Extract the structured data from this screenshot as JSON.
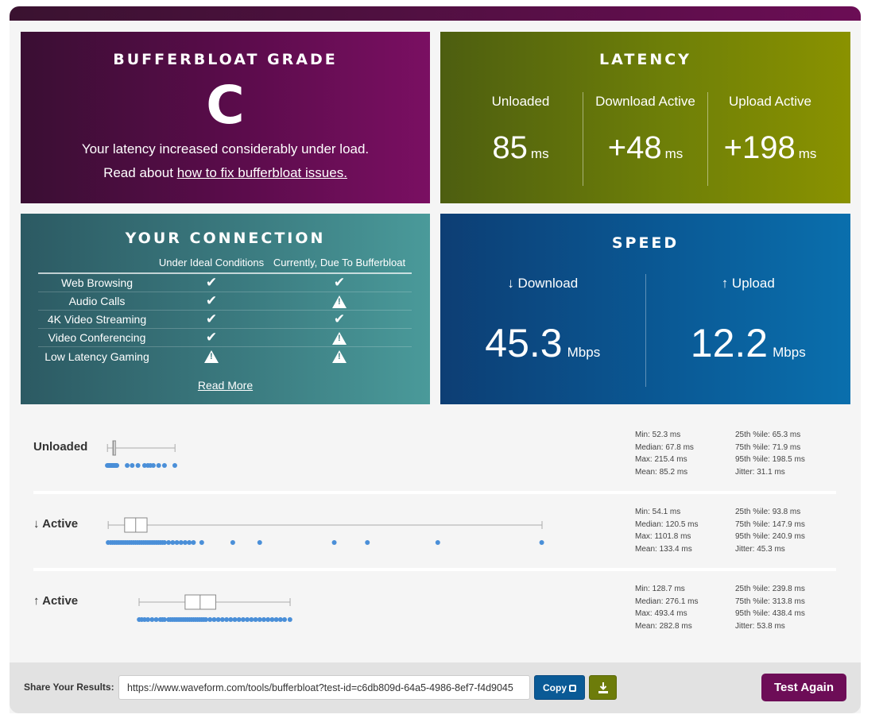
{
  "grade": {
    "title": "BUFFERBLOAT GRADE",
    "letter": "C",
    "description": "Your latency increased considerably under load.",
    "read_prefix": "Read about ",
    "read_link": "how to fix bufferbloat issues."
  },
  "latency": {
    "title": "LATENCY",
    "columns": [
      {
        "label": "Unloaded",
        "value": "85",
        "unit": "ms"
      },
      {
        "label": "Download Active",
        "value": "+48",
        "unit": "ms"
      },
      {
        "label": "Upload Active",
        "value": "+198",
        "unit": "ms"
      }
    ]
  },
  "connection": {
    "title": "YOUR CONNECTION",
    "col_ideal": "Under Ideal Conditions",
    "col_now": "Currently, Due To Bufferbloat",
    "rows": [
      {
        "name": "Web Browsing",
        "ideal": "check",
        "now": "check"
      },
      {
        "name": "Audio Calls",
        "ideal": "check",
        "now": "warn"
      },
      {
        "name": "4K Video Streaming",
        "ideal": "check",
        "now": "check"
      },
      {
        "name": "Video Conferencing",
        "ideal": "check",
        "now": "warn"
      },
      {
        "name": "Low Latency Gaming",
        "ideal": "warn",
        "now": "warn"
      }
    ],
    "read_more": "Read More"
  },
  "speed": {
    "title": "SPEED",
    "download": {
      "label": "↓ Download",
      "value": "45.3",
      "unit": "Mbps"
    },
    "upload": {
      "label": "↑ Upload",
      "value": "12.2",
      "unit": "Mbps"
    }
  },
  "distributions": [
    {
      "label": "Unloaded",
      "min": 52.3,
      "q1": 65.3,
      "median": 67.8,
      "q3": 71.9,
      "max": 215.4,
      "samples": [
        52,
        54,
        55,
        56,
        57,
        58,
        59,
        60,
        61,
        62,
        63,
        63,
        64,
        65,
        65,
        66,
        66,
        67,
        67,
        68,
        68,
        69,
        69,
        70,
        70,
        71,
        72,
        73,
        74,
        75,
        100,
        112,
        126,
        142,
        150,
        156,
        163,
        176,
        190,
        215
      ],
      "stats_left": [
        "Min: 52.3 ms",
        "Median: 67.8 ms",
        "Max: 215.4 ms",
        "Mean: 85.2 ms"
      ],
      "stats_right": [
        "25th %ile: 65.3 ms",
        "75th %ile: 71.9 ms",
        "95th %ile: 198.5 ms",
        "Jitter: 31.1 ms"
      ]
    },
    {
      "label": "↓ Active",
      "min": 54.1,
      "q1": 93.8,
      "median": 120.5,
      "q3": 147.9,
      "max": 1101.8,
      "samples": [
        54,
        60,
        65,
        70,
        75,
        80,
        85,
        90,
        95,
        100,
        105,
        110,
        115,
        120,
        125,
        130,
        135,
        140,
        145,
        150,
        155,
        160,
        165,
        170,
        175,
        180,
        185,
        190,
        200,
        210,
        220,
        230,
        240,
        250,
        260,
        280,
        355,
        420,
        600,
        680,
        850,
        1101
      ],
      "stats_left": [
        "Min: 54.1 ms",
        "Median: 120.5 ms",
        "Max: 1101.8 ms",
        "Mean: 133.4 ms"
      ],
      "stats_right": [
        "25th %ile: 93.8 ms",
        "75th %ile: 147.9 ms",
        "95th %ile: 240.9 ms",
        "Jitter: 45.3 ms"
      ]
    },
    {
      "label": "↑ Active",
      "min": 128.7,
      "q1": 239.8,
      "median": 276.1,
      "q3": 313.8,
      "max": 493.4,
      "samples": [
        129,
        135,
        142,
        150,
        160,
        170,
        180,
        185,
        190,
        200,
        205,
        210,
        215,
        220,
        225,
        230,
        235,
        240,
        245,
        250,
        255,
        260,
        265,
        270,
        275,
        280,
        285,
        290,
        300,
        310,
        320,
        330,
        340,
        350,
        360,
        370,
        380,
        390,
        400,
        410,
        420,
        430,
        440,
        450,
        460,
        470,
        480,
        493
      ],
      "stats_left": [
        "Min: 128.7 ms",
        "Median: 276.1 ms",
        "Max: 493.4 ms",
        "Mean: 282.8 ms"
      ],
      "stats_right": [
        "25th %ile: 239.8 ms",
        "75th %ile: 313.8 ms",
        "95th %ile: 438.4 ms",
        "Jitter: 53.8 ms"
      ]
    }
  ],
  "chart_scale_max_ms": 1101.8,
  "footer": {
    "share_label": "Share Your Results:",
    "share_url": "https://www.waveform.com/tools/bufferbloat?test-id=c6db809d-64a5-4986-8ef7-f4d9045",
    "copy_label": "Copy",
    "download_icon": "download-icon",
    "test_again": "Test Again"
  },
  "colors": {
    "grade": "#5c0c4c",
    "latency": "#6e7f08",
    "connection": "#3b7b80",
    "speed": "#0a5995",
    "dots": "#4a8fd8"
  }
}
